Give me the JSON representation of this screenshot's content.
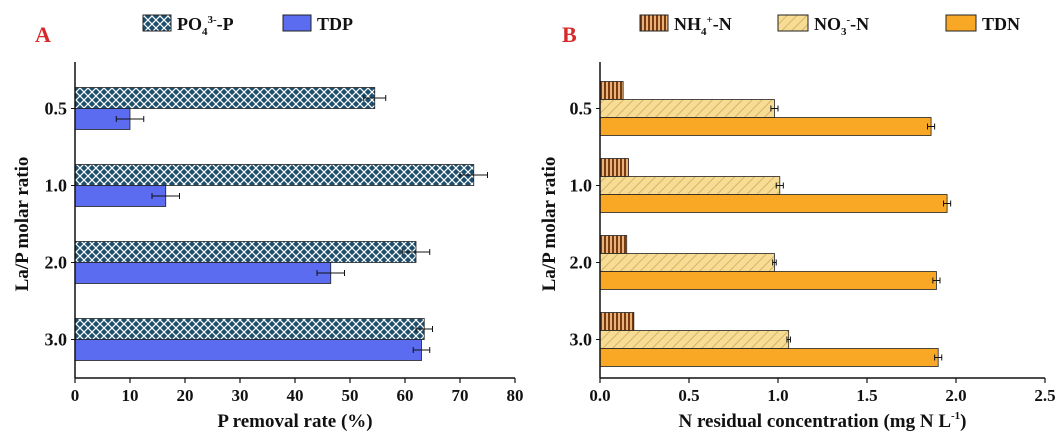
{
  "chart_data": [
    {
      "panel": "A",
      "type": "bar",
      "orientation": "horizontal",
      "categories": [
        "0.5",
        "1.0",
        "2.0",
        "3.0"
      ],
      "series": [
        {
          "name": "PO4 3- -P",
          "legend": {
            "main": "PO",
            "sub": "4",
            "sup": "3-",
            "tail": "-P"
          },
          "values": [
            54.5,
            72.5,
            62.0,
            63.5
          ],
          "errors": [
            2.0,
            2.5,
            2.5,
            1.5
          ],
          "color": "#1e4e6e",
          "pattern": "crosshatch"
        },
        {
          "name": "TDP",
          "legend": {
            "main": "TDP"
          },
          "values": [
            10.0,
            16.5,
            46.5,
            63.0
          ],
          "errors": [
            2.5,
            2.5,
            2.5,
            1.5
          ],
          "color": "#5b6cf0",
          "pattern": "solid"
        }
      ],
      "xlabel": "P removal rate (%)",
      "ylabel": "La/P molar ratio",
      "xlim": [
        0,
        80
      ],
      "xticks": [
        "0",
        "10",
        "20",
        "30",
        "40",
        "50",
        "60",
        "70",
        "80"
      ]
    },
    {
      "panel": "B",
      "type": "bar",
      "orientation": "horizontal",
      "categories": [
        "0.5",
        "1.0",
        "2.0",
        "3.0"
      ],
      "series": [
        {
          "name": "NH4+ -N",
          "legend": {
            "main": "NH",
            "sub": "4",
            "sup": "+",
            "tail": "-N"
          },
          "values": [
            0.13,
            0.16,
            0.15,
            0.19
          ],
          "errors": [
            0,
            0,
            0,
            0
          ],
          "color": "#8b4513",
          "pattern": "vertical-stripes"
        },
        {
          "name": "NO3- -N",
          "legend": {
            "main": "NO",
            "sub": "3",
            "sup": "-",
            "tail": "-N"
          },
          "values": [
            0.98,
            1.01,
            0.98,
            1.06
          ],
          "errors": [
            0.02,
            0.02,
            0.01,
            0.01
          ],
          "color": "#f0d48a",
          "pattern": "diagonal"
        },
        {
          "name": "TDN",
          "legend": {
            "main": "TDN"
          },
          "values": [
            1.86,
            1.95,
            1.89,
            1.9
          ],
          "errors": [
            0.02,
            0.02,
            0.02,
            0.02
          ],
          "color": "#f9a825",
          "pattern": "solid"
        }
      ],
      "xlabel": "N residual concentration (mg N L",
      "xlabel_sup": "-1",
      "xlabel_tail": ")",
      "ylabel": "La/P molar ratio",
      "xlim": [
        0,
        2.5
      ],
      "xticks": [
        "0.0",
        "0.5",
        "1.0",
        "1.5",
        "2.0",
        "2.5"
      ]
    }
  ]
}
